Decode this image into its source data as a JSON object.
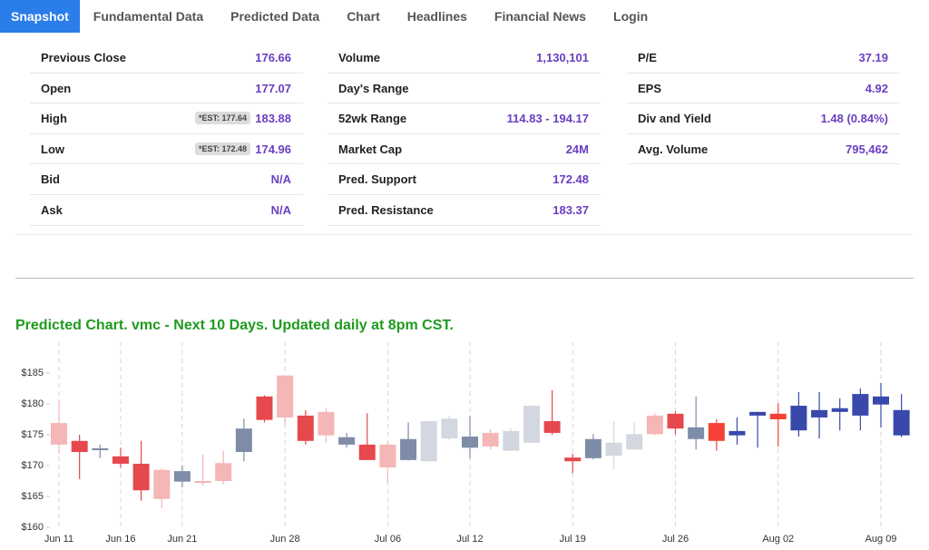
{
  "tabs": [
    "Snapshot",
    "Fundamental Data",
    "Predicted Data",
    "Chart",
    "Headlines",
    "Financial News",
    "Login"
  ],
  "stats": {
    "columns": [
      [
        {
          "label": "Previous Close",
          "value": "176.66"
        },
        {
          "label": "Open",
          "value": "177.07"
        },
        {
          "label": "High",
          "est": "*EST: 177.64",
          "value": "183.88"
        },
        {
          "label": "Low",
          "est": "*EST: 172.48",
          "value": "174.96"
        },
        {
          "label": "Bid",
          "value": "N/A"
        },
        {
          "label": "Ask",
          "value": "N/A"
        }
      ],
      [
        {
          "label": "Volume",
          "value": "1,130,101"
        },
        {
          "label": "Day's Range",
          "value": ""
        },
        {
          "label": "52wk Range",
          "value": "114.83 - 194.17"
        },
        {
          "label": "Market Cap",
          "value": "24M"
        },
        {
          "label": "Pred. Support",
          "value": "172.48"
        },
        {
          "label": "Pred. Resistance",
          "value": "183.37"
        }
      ],
      [
        {
          "label": "P/E",
          "value": "37.19"
        },
        {
          "label": "EPS",
          "value": "4.92"
        },
        {
          "label": "Div and Yield",
          "value": "1.48 (0.84%)"
        },
        {
          "label": "Avg. Volume",
          "value": "795,462"
        }
      ]
    ]
  },
  "chart": {
    "type": "candlestick",
    "title": "Predicted Chart. vmc - Next 10 Days. Updated daily at 8pm CST.",
    "categories": [
      "Jun 11",
      null,
      null,
      "Jun 16",
      null,
      null,
      "Jun 21",
      null,
      null,
      null,
      null,
      "Jun 28",
      null,
      null,
      null,
      null,
      "Jul 06",
      null,
      null,
      null,
      "Jul 12",
      null,
      null,
      null,
      null,
      "Jul 19",
      null,
      null,
      null,
      null,
      "Jul 26",
      null,
      null,
      null,
      null,
      "Aug 02",
      null,
      null,
      null,
      null,
      "Aug 09",
      null
    ],
    "candles": [
      {
        "open": 173.4,
        "high": 180.7,
        "low": 171.9,
        "close": 176.9,
        "color": "#f4b6b6"
      },
      {
        "open": 174.0,
        "high": 175.0,
        "low": 167.8,
        "close": 172.2,
        "color": "#e5484d"
      },
      {
        "open": 172.5,
        "high": 173.4,
        "low": 171.2,
        "close": 172.8,
        "color": "#7f8ca8"
      },
      {
        "open": 171.5,
        "high": 172.9,
        "low": 169.7,
        "close": 170.3,
        "color": "#e5484d"
      },
      {
        "open": 170.3,
        "high": 174.0,
        "low": 164.3,
        "close": 166.0,
        "color": "#e5484d"
      },
      {
        "open": 169.3,
        "high": 169.6,
        "low": 163.1,
        "close": 164.6,
        "color": "#f4b6b6"
      },
      {
        "open": 167.4,
        "high": 170.0,
        "low": 166.5,
        "close": 169.1,
        "color": "#7f8ca8"
      },
      {
        "open": 167.2,
        "high": 171.8,
        "low": 166.8,
        "close": 167.5,
        "color": "#f4b6b6"
      },
      {
        "open": 167.5,
        "high": 172.4,
        "low": 167.0,
        "close": 170.4,
        "color": "#f4b6b6"
      },
      {
        "open": 172.2,
        "high": 177.6,
        "low": 170.7,
        "close": 176.0,
        "color": "#7f8ca8"
      },
      {
        "open": 181.2,
        "high": 181.4,
        "low": 177.0,
        "close": 177.4,
        "color": "#e5484d"
      },
      {
        "open": 177.8,
        "high": 184.6,
        "low": 176.5,
        "close": 184.6,
        "color": "#f4b6b6"
      },
      {
        "open": 178.1,
        "high": 179.0,
        "low": 173.4,
        "close": 174.0,
        "color": "#e5484d"
      },
      {
        "open": 174.9,
        "high": 179.3,
        "low": 173.7,
        "close": 178.7,
        "color": "#f4b6b6"
      },
      {
        "open": 174.6,
        "high": 175.3,
        "low": 172.9,
        "close": 173.4,
        "color": "#7f8ca8"
      },
      {
        "open": 173.4,
        "high": 178.5,
        "low": 170.9,
        "close": 170.9,
        "color": "#e5484d"
      },
      {
        "open": 173.4,
        "high": 173.8,
        "low": 167.2,
        "close": 169.7,
        "color": "#f4b6b6"
      },
      {
        "open": 170.9,
        "high": 177.0,
        "low": 170.8,
        "close": 174.3,
        "color": "#7f8ca8"
      },
      {
        "open": 170.7,
        "high": 177.2,
        "low": 170.7,
        "close": 177.2,
        "color": "#d3d7df"
      },
      {
        "open": 174.4,
        "high": 178.1,
        "low": 174.1,
        "close": 177.6,
        "color": "#d3d7df"
      },
      {
        "open": 174.7,
        "high": 178.1,
        "low": 171.2,
        "close": 172.9,
        "color": "#7f8ca8"
      },
      {
        "open": 173.1,
        "high": 175.9,
        "low": 172.6,
        "close": 175.3,
        "color": "#f4b6b6"
      },
      {
        "open": 172.4,
        "high": 176.0,
        "low": 172.4,
        "close": 175.6,
        "color": "#d3d7df"
      },
      {
        "open": 173.7,
        "high": 179.7,
        "low": 173.7,
        "close": 179.7,
        "color": "#d3d7df"
      },
      {
        "open": 177.2,
        "high": 182.2,
        "low": 175.0,
        "close": 175.3,
        "color": "#e5484d"
      },
      {
        "open": 171.3,
        "high": 171.9,
        "low": 168.8,
        "close": 170.7,
        "color": "#e5484d"
      },
      {
        "open": 171.2,
        "high": 175.1,
        "low": 171.0,
        "close": 174.3,
        "color": "#7f8ca8"
      },
      {
        "open": 171.6,
        "high": 177.2,
        "low": 169.4,
        "close": 173.7,
        "color": "#d3d7df"
      },
      {
        "open": 172.6,
        "high": 177.0,
        "low": 172.6,
        "close": 175.1,
        "color": "#d3d7df"
      },
      {
        "open": 175.1,
        "high": 178.5,
        "low": 174.9,
        "close": 178.1,
        "color": "#f4b6b6"
      },
      {
        "open": 178.4,
        "high": 178.8,
        "low": 175.0,
        "close": 176.0,
        "color": "#e5484d"
      },
      {
        "open": 174.3,
        "high": 181.2,
        "low": 172.6,
        "close": 176.2,
        "color": "#7f8ca8"
      },
      {
        "open": 176.9,
        "high": 177.5,
        "low": 172.4,
        "close": 174.0,
        "color": "#f44336"
      },
      {
        "open": 174.9,
        "high": 177.8,
        "low": 173.4,
        "close": 175.6,
        "color": "#3949ab"
      },
      {
        "open": 178.1,
        "high": 178.7,
        "low": 172.9,
        "close": 178.7,
        "color": "#3949ab"
      },
      {
        "open": 178.4,
        "high": 180.1,
        "low": 173.1,
        "close": 177.5,
        "color": "#f44336"
      },
      {
        "open": 175.7,
        "high": 181.9,
        "low": 174.7,
        "close": 179.7,
        "color": "#3949ab"
      },
      {
        "open": 177.8,
        "high": 181.9,
        "low": 174.4,
        "close": 179.0,
        "color": "#3949ab"
      },
      {
        "open": 178.7,
        "high": 180.9,
        "low": 175.7,
        "close": 179.3,
        "color": "#3949ab"
      },
      {
        "open": 178.1,
        "high": 182.5,
        "low": 175.7,
        "close": 181.6,
        "color": "#3949ab"
      },
      {
        "open": 179.9,
        "high": 183.4,
        "low": 176.2,
        "close": 181.2,
        "color": "#3949ab"
      },
      {
        "open": 179.0,
        "high": 181.6,
        "low": 174.6,
        "close": 174.9,
        "color": "#3949ab"
      }
    ],
    "ylim": [
      160,
      190
    ],
    "yticks": [
      {
        "value": 160,
        "label": "$160"
      },
      {
        "value": 165,
        "label": "$165"
      },
      {
        "value": 170,
        "label": "$170"
      },
      {
        "value": 175,
        "label": "$175"
      },
      {
        "value": 180,
        "label": "$180"
      },
      {
        "value": 185,
        "label": "$185"
      }
    ],
    "xgrid": true
  }
}
